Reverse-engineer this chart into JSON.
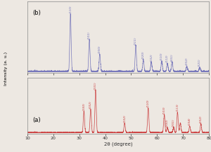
{
  "title_b": "(b)",
  "title_a": "(a)",
  "xlabel": "2θ (degree)",
  "ylabel": "Intensity (a. u.)",
  "xlim": [
    10,
    80
  ],
  "line_color_b": "#7777bb",
  "line_color_a": "#cc4444",
  "background": "#ede8e2",
  "xticks": [
    10,
    20,
    30,
    40,
    50,
    60,
    70,
    80
  ],
  "peaks_b_pos": [
    26.6,
    33.9,
    37.9,
    51.8,
    54.7,
    57.8,
    61.8,
    64.0,
    65.8,
    71.5,
    76.5
  ],
  "peaks_b_h": [
    1.0,
    0.55,
    0.3,
    0.45,
    0.2,
    0.16,
    0.18,
    0.14,
    0.16,
    0.09,
    0.07
  ],
  "peaks_a_pos": [
    31.8,
    34.4,
    36.3,
    47.5,
    56.6,
    62.8,
    64.0,
    66.4,
    67.9,
    69.0,
    72.6,
    76.9
  ],
  "peaks_a_h": [
    0.5,
    0.55,
    1.0,
    0.22,
    0.58,
    0.42,
    0.12,
    0.12,
    0.48,
    0.22,
    0.15,
    0.2
  ],
  "labels_b": [
    [
      "(110)",
      26.6,
      1.02
    ],
    [
      "(101)",
      33.9,
      0.57
    ],
    [
      "(200)",
      37.9,
      0.32
    ],
    [
      "(211)",
      51.8,
      0.47
    ],
    [
      "(220)",
      54.7,
      0.22
    ],
    [
      "(002)",
      57.8,
      0.18
    ],
    [
      "(310)",
      61.8,
      0.2
    ],
    [
      "(112)",
      64.0,
      0.16
    ],
    [
      "(301)",
      65.8,
      0.18
    ],
    [
      "(202)",
      71.5,
      0.11
    ],
    [
      "(321)",
      76.5,
      0.09
    ]
  ],
  "labels_a": [
    [
      "(100)",
      31.8,
      0.52
    ],
    [
      "(002)",
      34.4,
      0.57
    ],
    [
      "(101)",
      36.3,
      1.02
    ],
    [
      "(102)",
      47.5,
      0.24
    ],
    [
      "(110)",
      56.6,
      0.6
    ],
    [
      "(103)",
      62.8,
      0.44
    ],
    [
      "(200)",
      64.0,
      0.14
    ],
    [
      "(113)",
      67.9,
      0.5
    ],
    [
      "(201)",
      66.4,
      0.14
    ],
    [
      "(004)",
      72.6,
      0.17
    ],
    [
      "(202)",
      76.9,
      0.22
    ]
  ]
}
